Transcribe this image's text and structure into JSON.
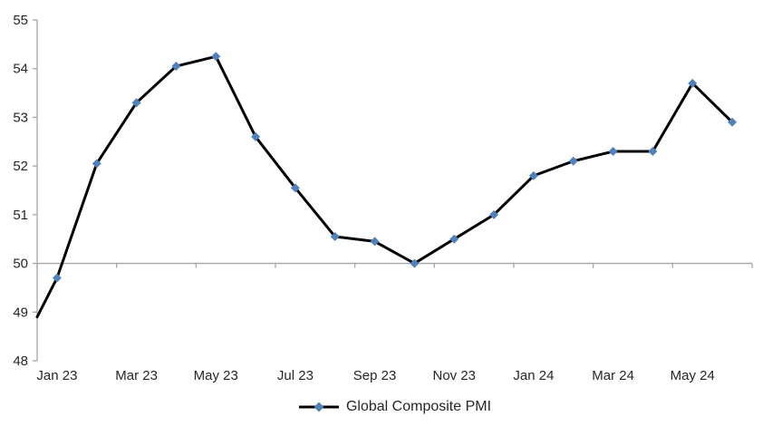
{
  "chart_data": {
    "type": "line",
    "title": "",
    "categories": [
      "Jan 23",
      "Feb 23",
      "Mar 23",
      "Apr 23",
      "May 23",
      "Jun 23",
      "Jul 23",
      "Aug 23",
      "Sep 23",
      "Oct 23",
      "Nov 23",
      "Dec 23",
      "Jan 24",
      "Feb 24",
      "Mar 24",
      "Apr 24",
      "May 24",
      "Jun 24"
    ],
    "series": [
      {
        "name": "Global Composite PMI",
        "values": [
          49.7,
          52.05,
          53.3,
          54.05,
          54.25,
          52.6,
          51.55,
          50.55,
          50.45,
          50.0,
          50.5,
          51.0,
          51.8,
          52.1,
          52.3,
          52.3,
          53.7,
          52.9
        ],
        "line_color": "#000000",
        "line_width": 3,
        "marker": "diamond",
        "marker_color": "#4F81BD"
      }
    ],
    "left_edge_entry_value": 48.9,
    "x_tick_labels": [
      "Jan 23",
      "Mar 23",
      "May 23",
      "Jul 23",
      "Sep 23",
      "Nov 23",
      "Jan 24",
      "Mar 24",
      "May 24"
    ],
    "x_tick_every_n_categories": 2,
    "y_ticks": [
      48,
      49,
      50,
      51,
      52,
      53,
      54,
      55
    ],
    "ylim": [
      48,
      55
    ],
    "category_axis_crosses_at": 50,
    "gridlines": false,
    "axis_color": "#A6A6A6",
    "text_color": "#262626",
    "legend": {
      "position": "bottom",
      "label": "Global Composite PMI"
    }
  }
}
